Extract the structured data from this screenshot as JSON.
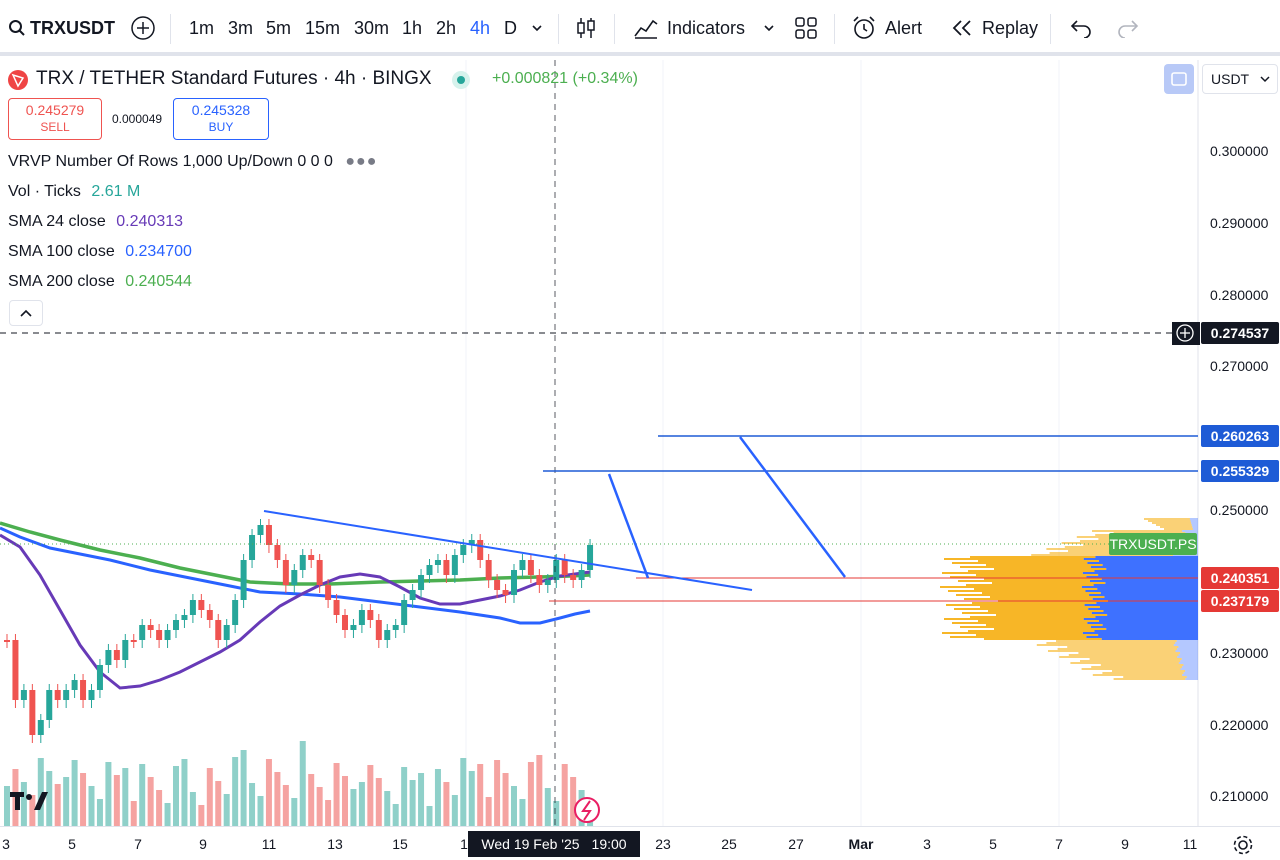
{
  "toolbar": {
    "symbol": "TRXUSDT",
    "timeframes": [
      "1m",
      "3m",
      "5m",
      "15m",
      "30m",
      "1h",
      "2h",
      "4h",
      "D"
    ],
    "active_timeframe": "4h",
    "indicators_label": "Indicators",
    "alert_label": "Alert",
    "replay_label": "Replay"
  },
  "legend": {
    "title": "TRX / TETHER Standard Futures · 4h · BINGX",
    "change": "+0.000821 (+0.34%)",
    "sell_price": "0.245279",
    "sell_label": "SELL",
    "spread": "0.000049",
    "buy_price": "0.245328",
    "buy_label": "BUY",
    "vrvp": "VRVP Number Of Rows 1,000 Up/Down  0  0  0",
    "vol_name": "Vol · Ticks",
    "vol_value": "2.61 M",
    "sma24_name": "SMA 24 close",
    "sma24_value": "0.240313",
    "sma100_name": "SMA 100 close",
    "sma100_value": "0.234700",
    "sma200_name": "SMA 200 close",
    "sma200_value": "0.240544"
  },
  "price_scale": {
    "currency": "USDT",
    "ticks": [
      "0.300000",
      "0.290000",
      "0.280000",
      "0.270000",
      "0.250000",
      "0.230000",
      "0.220000",
      "0.210000"
    ],
    "crosshair_price": "0.274537",
    "labels": {
      "l1": "0.260263",
      "l2": "0.255329",
      "symbol_tag": "TRXUSDT.PS",
      "l3": "0.240351",
      "l4": "0.237179"
    }
  },
  "time_axis": {
    "ticks": [
      "3",
      "5",
      "7",
      "9",
      "11",
      "13",
      "15",
      "1",
      "23",
      "25",
      "27",
      "Mar",
      "3",
      "5",
      "7",
      "9",
      "11"
    ],
    "crosshair_date": "Wed 19 Feb '25",
    "crosshair_time": "19:00"
  },
  "colors": {
    "accent": "#2962ff",
    "up": "#26a69a",
    "down": "#ef5350",
    "sma24": "#673ab7",
    "sma100": "#2962ff",
    "sma200": "#4caf50",
    "vrvp_up": "#2962ff",
    "vrvp_down": "#f7b21b"
  },
  "icons": {
    "search": "search-icon",
    "add_symbol": "plus-circle-icon",
    "chart_type": "candles-icon",
    "indicators": "chart-line-icon",
    "templates": "grid-icon",
    "alert": "alarm-clock-icon",
    "replay": "rewind-icon",
    "undo": "undo-icon",
    "redo": "redo-icon",
    "settings": "gear-icon",
    "logo": "tradingview-logo"
  }
}
